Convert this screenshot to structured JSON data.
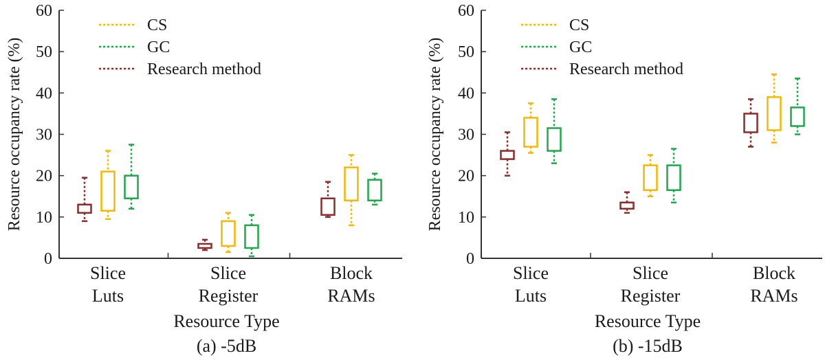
{
  "colors": {
    "CS": "#f5b800",
    "GC": "#1ea84a",
    "Research method": "#8b2c2a",
    "axis": "#333333"
  },
  "chart_data": [
    {
      "type": "box",
      "caption": "(a) -5dB",
      "xlabel": "Resource Type",
      "ylabel": "Resource occupancy rate (%)",
      "ylim": [
        0,
        60
      ],
      "yticks": [
        0,
        10,
        20,
        30,
        40,
        50,
        60
      ],
      "categories": [
        [
          "Slice",
          "Luts"
        ],
        [
          "Slice",
          "Register"
        ],
        [
          "Block",
          "RAMs"
        ]
      ],
      "series": [
        {
          "name": "Research method",
          "boxes": [
            {
              "min": 9,
              "q1": 11,
              "q3": 13,
              "max": 19.5
            },
            {
              "min": 2,
              "q1": 2.5,
              "q3": 3.5,
              "max": 4.5
            },
            {
              "min": 10,
              "q1": 10.5,
              "q3": 14.5,
              "max": 18.5
            }
          ]
        },
        {
          "name": "CS",
          "boxes": [
            {
              "min": 9.5,
              "q1": 11.5,
              "q3": 21,
              "max": 26
            },
            {
              "min": 1.5,
              "q1": 3,
              "q3": 9,
              "max": 11
            },
            {
              "min": 8,
              "q1": 14,
              "q3": 22,
              "max": 25
            }
          ]
        },
        {
          "name": "GC",
          "boxes": [
            {
              "min": 12,
              "q1": 14.5,
              "q3": 20,
              "max": 27.5
            },
            {
              "min": 0.5,
              "q1": 2.5,
              "q3": 8,
              "max": 10.5
            },
            {
              "min": 13,
              "q1": 14,
              "q3": 19,
              "max": 20.5
            }
          ]
        }
      ],
      "legend": [
        "CS",
        "GC",
        "Research method"
      ]
    },
    {
      "type": "box",
      "caption": "(b) -15dB",
      "xlabel": "Resource Type",
      "ylabel": "Resource occupancy rate (%)",
      "ylim": [
        0,
        60
      ],
      "yticks": [
        0,
        10,
        20,
        30,
        40,
        50,
        60
      ],
      "categories": [
        [
          "Slice",
          "Luts"
        ],
        [
          "Slice",
          "Register"
        ],
        [
          "Block",
          "RAMs"
        ]
      ],
      "series": [
        {
          "name": "Research method",
          "boxes": [
            {
              "min": 20,
              "q1": 24,
              "q3": 26,
              "max": 30.5
            },
            {
              "min": 11,
              "q1": 12,
              "q3": 13.5,
              "max": 16
            },
            {
              "min": 27,
              "q1": 30.5,
              "q3": 35,
              "max": 38.5
            }
          ]
        },
        {
          "name": "CS",
          "boxes": [
            {
              "min": 25.5,
              "q1": 27,
              "q3": 34,
              "max": 37.5
            },
            {
              "min": 15,
              "q1": 16.5,
              "q3": 22.5,
              "max": 25
            },
            {
              "min": 28,
              "q1": 31,
              "q3": 39,
              "max": 44.5
            }
          ]
        },
        {
          "name": "GC",
          "boxes": [
            {
              "min": 23,
              "q1": 26,
              "q3": 31.5,
              "max": 38.5
            },
            {
              "min": 13.5,
              "q1": 16.5,
              "q3": 22.5,
              "max": 26.5
            },
            {
              "min": 30,
              "q1": 32,
              "q3": 36.5,
              "max": 43.5
            }
          ]
        }
      ],
      "legend": [
        "CS",
        "GC",
        "Research method"
      ]
    }
  ]
}
